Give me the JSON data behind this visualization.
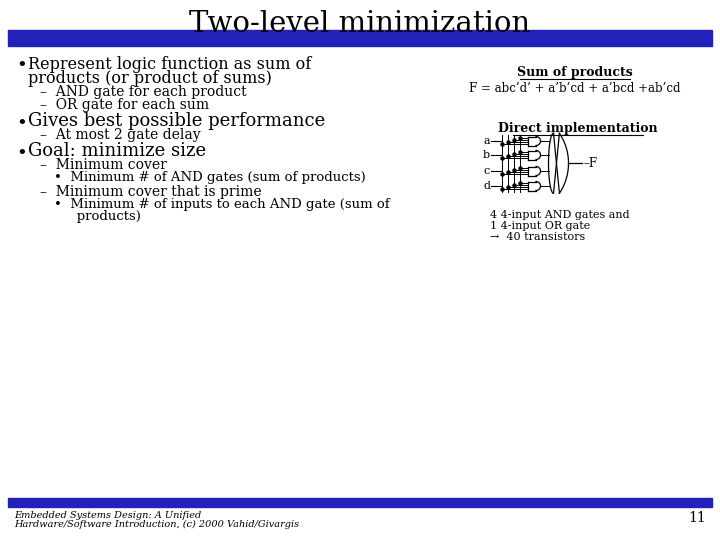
{
  "title": "Two-level minimization",
  "bg": "#ffffff",
  "title_fontsize": 21,
  "bar_color": "#2222bb",
  "sop_label": "Sum of products",
  "sop_formula": "F = abc’d’ + a’b’cd + a’bcd +ab’cd",
  "direct_label": "Direct implementation",
  "input_labels": [
    "a",
    "b",
    "c",
    "d"
  ],
  "gate_note1": "4 4-input AND gates and",
  "gate_note2": "1 4-input OR gate",
  "gate_note3": "→  40 transistors",
  "footer1": "Embedded Systems Design: A Unified",
  "footer2": "Hardware/Software Introduction, (c) 2000 Vahid/Givargis",
  "page": "11",
  "bullet1_line1": "Represent logic function as sum of",
  "bullet1_line2": "products (or product of sums)",
  "sub1a": "–  AND gate for each product",
  "sub1b": "–  OR gate for each sum",
  "bullet2": "Gives best possible performance",
  "sub2a": "–  At most 2 gate delay",
  "bullet3": "Goal: minimize size",
  "sub3a": "–  Minimum cover",
  "sub3a1": "•  Minimum # of AND gates (sum of products)",
  "sub3b": "–  Minimum cover that is prime",
  "sub3b1a": "•  Minimum # of inputs to each AND gate (sum of",
  "sub3b1b": "   products)"
}
